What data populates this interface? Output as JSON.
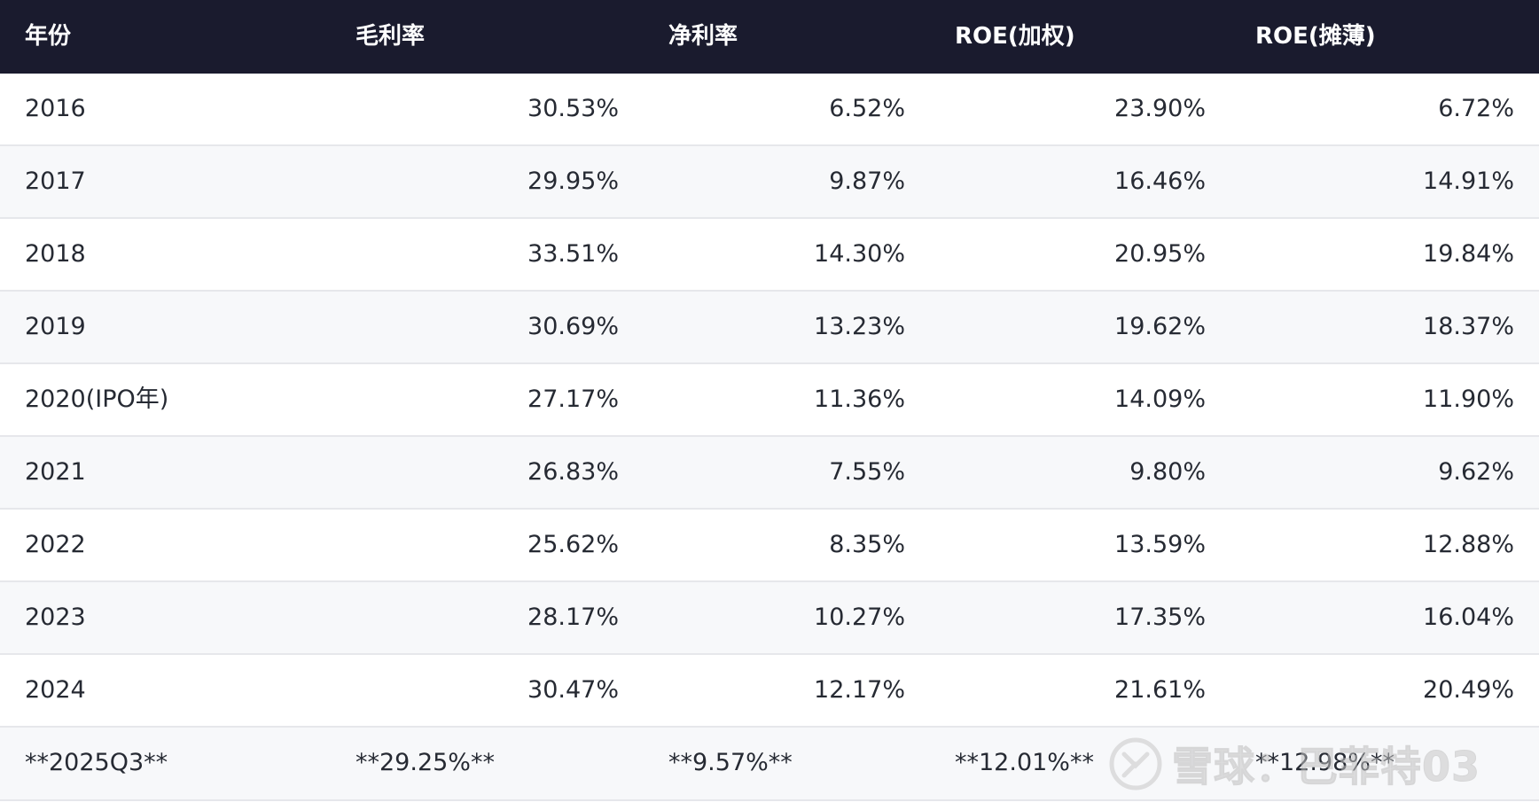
{
  "headers": [
    "年份",
    "毛利率",
    "净利率",
    "ROE(加权)",
    "ROE(摊薄)"
  ],
  "rows": [
    [
      "2016",
      "30.53%",
      "6.52%",
      "23.90%",
      "6.72%"
    ],
    [
      "2017",
      "29.95%",
      "9.87%",
      "16.46%",
      "14.91%"
    ],
    [
      "2018",
      "33.51%",
      "14.30%",
      "20.95%",
      "19.84%"
    ],
    [
      "2019",
      "30.69%",
      "13.23%",
      "19.62%",
      "18.37%"
    ],
    [
      "2020(IPO年)",
      "27.17%",
      "11.36%",
      "14.09%",
      "11.90%"
    ],
    [
      "2021",
      "26.83%",
      "7.55%",
      "9.80%",
      "9.62%"
    ],
    [
      "2022",
      "25.62%",
      "8.35%",
      "13.59%",
      "12.88%"
    ],
    [
      "2023",
      "28.17%",
      "10.27%",
      "17.35%",
      "16.04%"
    ],
    [
      "2024",
      "30.47%",
      "12.17%",
      "21.61%",
      "20.49%"
    ],
    [
      "**2025Q3**",
      "**29.25%**",
      "**9.57%**",
      "**12.01%**",
      "**12.98%**"
    ]
  ],
  "watermark": {
    "text": "雪球：巴菲特03",
    "icon": "snowball-logo-icon"
  },
  "colors": {
    "header_bg": "#1a1b2e",
    "header_text": "#ffffff",
    "row_alt_bg": "#f7f8fa",
    "text": "#262a33"
  }
}
